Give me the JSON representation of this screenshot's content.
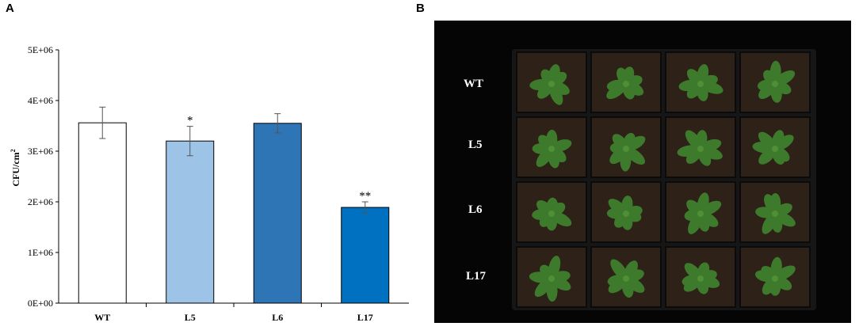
{
  "panels": {
    "a_label": "A",
    "b_label": "B"
  },
  "chart_data": {
    "type": "bar",
    "title": "",
    "xlabel": "",
    "ylabel": "CFU/cm",
    "ylabel_superscript": "2",
    "ylim": [
      0,
      5000000
    ],
    "yticks": [
      0,
      1000000,
      2000000,
      3000000,
      4000000,
      5000000
    ],
    "ytick_labels": [
      "0E+00",
      "1E+06",
      "2E+06",
      "3E+06",
      "4E+06",
      "5E+06"
    ],
    "categories": [
      "WT",
      "L5",
      "L6",
      "L17"
    ],
    "values": [
      3560000,
      3200000,
      3550000,
      1890000
    ],
    "errors": [
      310000,
      290000,
      190000,
      110000
    ],
    "significance": [
      "",
      "*",
      "",
      "**"
    ],
    "bar_colors": [
      "#ffffff",
      "#9dc3e6",
      "#2e75b6",
      "#0070c0"
    ],
    "grid": false,
    "legend": "none"
  },
  "photo": {
    "row_labels": [
      "WT",
      "L5",
      "L6",
      "L17"
    ],
    "background_color": "#050505",
    "tray_color": "#161616",
    "soil_color": "#2d2118",
    "leaf_color": "#3d7a2c"
  }
}
